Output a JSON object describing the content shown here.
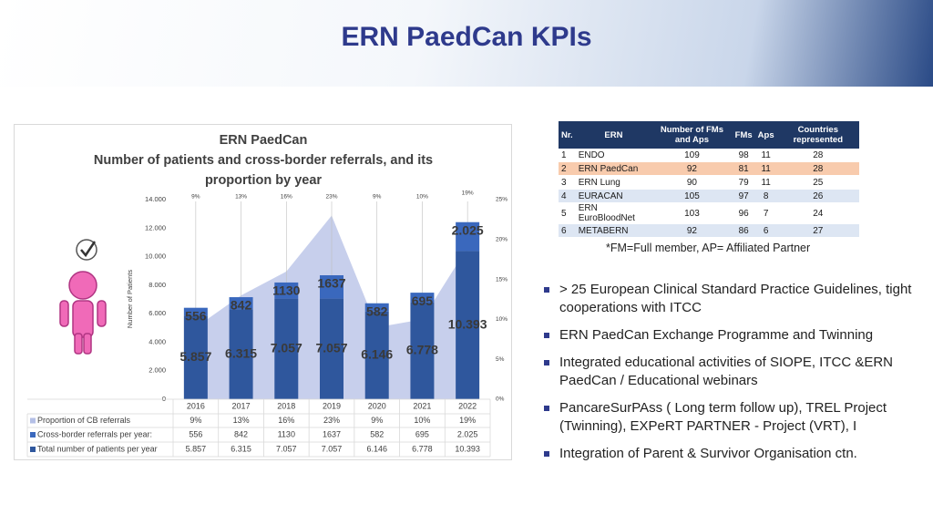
{
  "title": "ERN PaedCan KPIs",
  "chart_data": {
    "type": "bar",
    "stacked": true,
    "title": [
      "ERN PaedCan",
      "Number of patients and cross-border referrals, and its",
      "proportion by year"
    ],
    "ylabel": "Number of Patients",
    "categories": [
      "2016",
      "2017",
      "2018",
      "2019",
      "2020",
      "2021",
      "2022"
    ],
    "series": [
      {
        "name": "Proportion of CB referrals",
        "type": "area",
        "axis": "y2",
        "color": "#b4bfe6",
        "values": [
          9,
          13,
          16,
          23,
          9,
          10,
          19
        ],
        "value_labels": [
          "9%",
          "13%",
          "16%",
          "23%",
          "9%",
          "10%",
          "19%"
        ]
      },
      {
        "name": "Cross-border referrals per year:",
        "color": "#3a68bd",
        "values": [
          556,
          842,
          1130,
          1637,
          582,
          695,
          2025
        ],
        "value_labels": [
          "556",
          "842",
          "1130",
          "1637",
          "582",
          "695",
          "2.025"
        ]
      },
      {
        "name": "Total number of patients per year",
        "color": "#2f579d",
        "values": [
          5857,
          6315,
          7057,
          7057,
          6146,
          6778,
          10393
        ],
        "value_labels": [
          "5.857",
          "6.315",
          "7.057",
          "7.057",
          "6.146",
          "6.778",
          "10.393"
        ]
      }
    ],
    "ylim": [
      0,
      14000
    ],
    "yticks": [
      0,
      {
        "value": 2000,
        "label": "2.000"
      },
      {
        "value": 4000,
        "label": "4.000"
      },
      {
        "value": 6000,
        "label": "6.000"
      },
      {
        "value": 8000,
        "label": "8.000"
      },
      {
        "value": 10000,
        "label": "10.000"
      },
      {
        "value": 12000,
        "label": "12.000"
      },
      {
        "value": 14000,
        "label": "14.000"
      }
    ],
    "y2lim": [
      0,
      25
    ],
    "y2ticks": [
      {
        "value": 0,
        "label": "0%"
      },
      {
        "value": 5,
        "label": "5%"
      },
      {
        "value": 10,
        "label": "10%"
      },
      {
        "value": 15,
        "label": "15%"
      },
      {
        "value": 20,
        "label": "20%"
      },
      {
        "value": 25,
        "label": "25%"
      }
    ],
    "grid": false
  },
  "table": {
    "header": [
      "Nr.",
      "ERN",
      "Number of FMs and Aps",
      "FMs",
      "Aps",
      "Countries represented"
    ],
    "rows": [
      [
        "1",
        "ENDO",
        "109",
        "98",
        "11",
        "28"
      ],
      [
        "2",
        "ERN PaedCan",
        "92",
        "81",
        "11",
        "28"
      ],
      [
        "3",
        "ERN Lung",
        "90",
        "79",
        "11",
        "25"
      ],
      [
        "4",
        "EURACAN",
        "105",
        "97",
        "8",
        "26"
      ],
      [
        "5",
        "ERN EuroBloodNet",
        "103",
        "96",
        "7",
        "24"
      ],
      [
        "6",
        "METABERN",
        "92",
        "86",
        "6",
        "27"
      ]
    ]
  },
  "note": "*FM=Full member, AP= Affiliated Partner",
  "bullets": [
    "> 25 European Clinical Standard Practice Guidelines, tight cooperations with ITCC",
    "ERN PaedCan Exchange Programme and Twinning",
    "Integrated educational activities of SIOPE, ITCC &ERN PaedCan / Educational webinars",
    "PancareSurPAss ( Long term follow up), TREL Project (Twinning), EXPeRT PARTNER - Project (VRT), I",
    "Integration of Parent & Survivor Organisation ctn."
  ]
}
